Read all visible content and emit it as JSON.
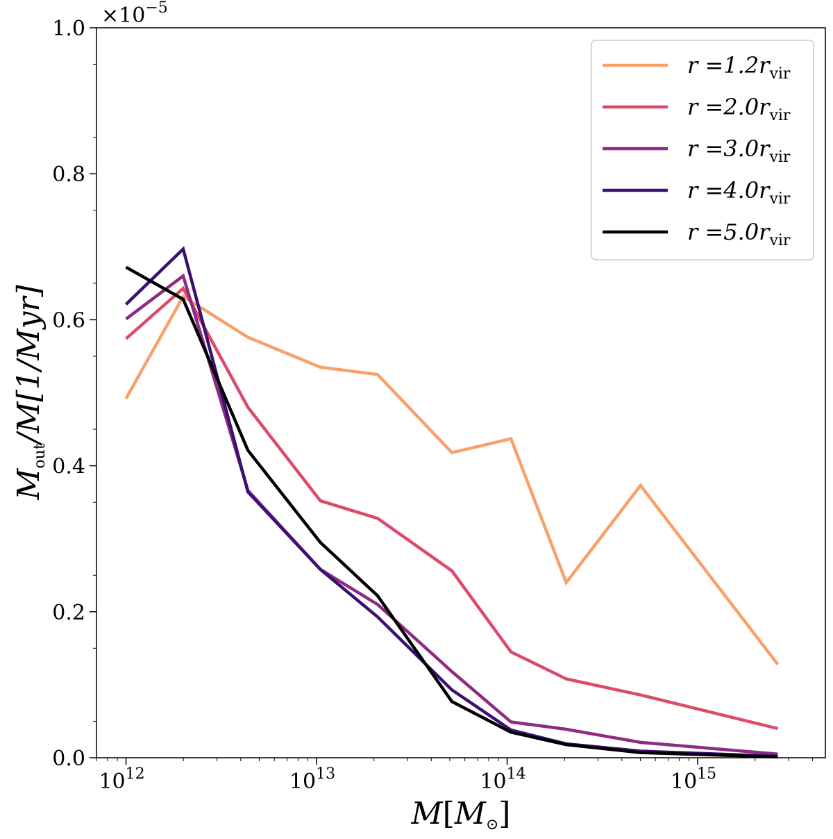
{
  "chart_data": {
    "type": "line",
    "title": "",
    "xscale": "log",
    "xlim_exp": [
      11.845,
      15.67
    ],
    "ylim": [
      0.0,
      1.0
    ],
    "y_offset_label": {
      "base": "×10",
      "exp": "−5"
    },
    "xlabel": {
      "main": "M",
      "bracket_open": "[",
      "sub_main": "M",
      "sub": "⊙",
      "bracket_close": "]"
    },
    "ylabel": {
      "main": "M",
      "dot": "˙",
      "sub": "out",
      "rest": "/M[1/Myr]"
    },
    "x_ticks": [
      {
        "base": "10",
        "exp": "12",
        "value_exp": 12
      },
      {
        "base": "10",
        "exp": "13",
        "value_exp": 13
      },
      {
        "base": "10",
        "exp": "14",
        "value_exp": 14
      },
      {
        "base": "10",
        "exp": "15",
        "value_exp": 15
      }
    ],
    "y_ticks": [
      {
        "label": "0.0",
        "value": 0.0
      },
      {
        "label": "0.2",
        "value": 0.2
      },
      {
        "label": "0.4",
        "value": 0.4
      },
      {
        "label": "0.6",
        "value": 0.6
      },
      {
        "label": "0.8",
        "value": 0.8
      },
      {
        "label": "1.0",
        "value": 1.0
      }
    ],
    "x_exp": [
      12.0,
      12.3,
      12.64,
      13.02,
      13.32,
      13.71,
      14.02,
      14.31,
      14.7,
      15.42
    ],
    "series": [
      {
        "name": "r=1.2r_vir",
        "label_r": "r",
        "label_eq": "=1.2r",
        "label_sub": "vir",
        "color": "#f9a06a",
        "values": [
          0.492,
          0.632,
          0.576,
          0.535,
          0.525,
          0.418,
          0.437,
          0.24,
          0.373,
          0.128
        ]
      },
      {
        "name": "r=2.0r_vir",
        "label_r": "r",
        "label_eq": "=2.0r",
        "label_sub": "vir",
        "color": "#dd4a69",
        "values": [
          0.574,
          0.643,
          0.48,
          0.352,
          0.328,
          0.256,
          0.145,
          0.108,
          0.086,
          0.04
        ]
      },
      {
        "name": "r=3.0r_vir",
        "label_r": "r",
        "label_eq": "=3.0r",
        "label_sub": "vir",
        "color": "#8f2a82",
        "values": [
          0.601,
          0.66,
          0.366,
          0.258,
          0.21,
          0.118,
          0.049,
          0.039,
          0.021,
          0.005
        ]
      },
      {
        "name": "r=4.0r_vir",
        "label_r": "r",
        "label_eq": "=4.0r",
        "label_sub": "vir",
        "color": "#3a1070",
        "values": [
          0.621,
          0.697,
          0.364,
          0.258,
          0.193,
          0.093,
          0.038,
          0.019,
          0.009,
          0.002
        ]
      },
      {
        "name": "r=5.0r_vir",
        "label_r": "r",
        "label_eq": "=5.0r",
        "label_sub": "vir",
        "color": "#000000",
        "values": [
          0.672,
          0.628,
          0.421,
          0.295,
          0.222,
          0.077,
          0.035,
          0.018,
          0.007,
          0.001
        ]
      }
    ],
    "legend_position": "upper-right",
    "grid": false
  }
}
